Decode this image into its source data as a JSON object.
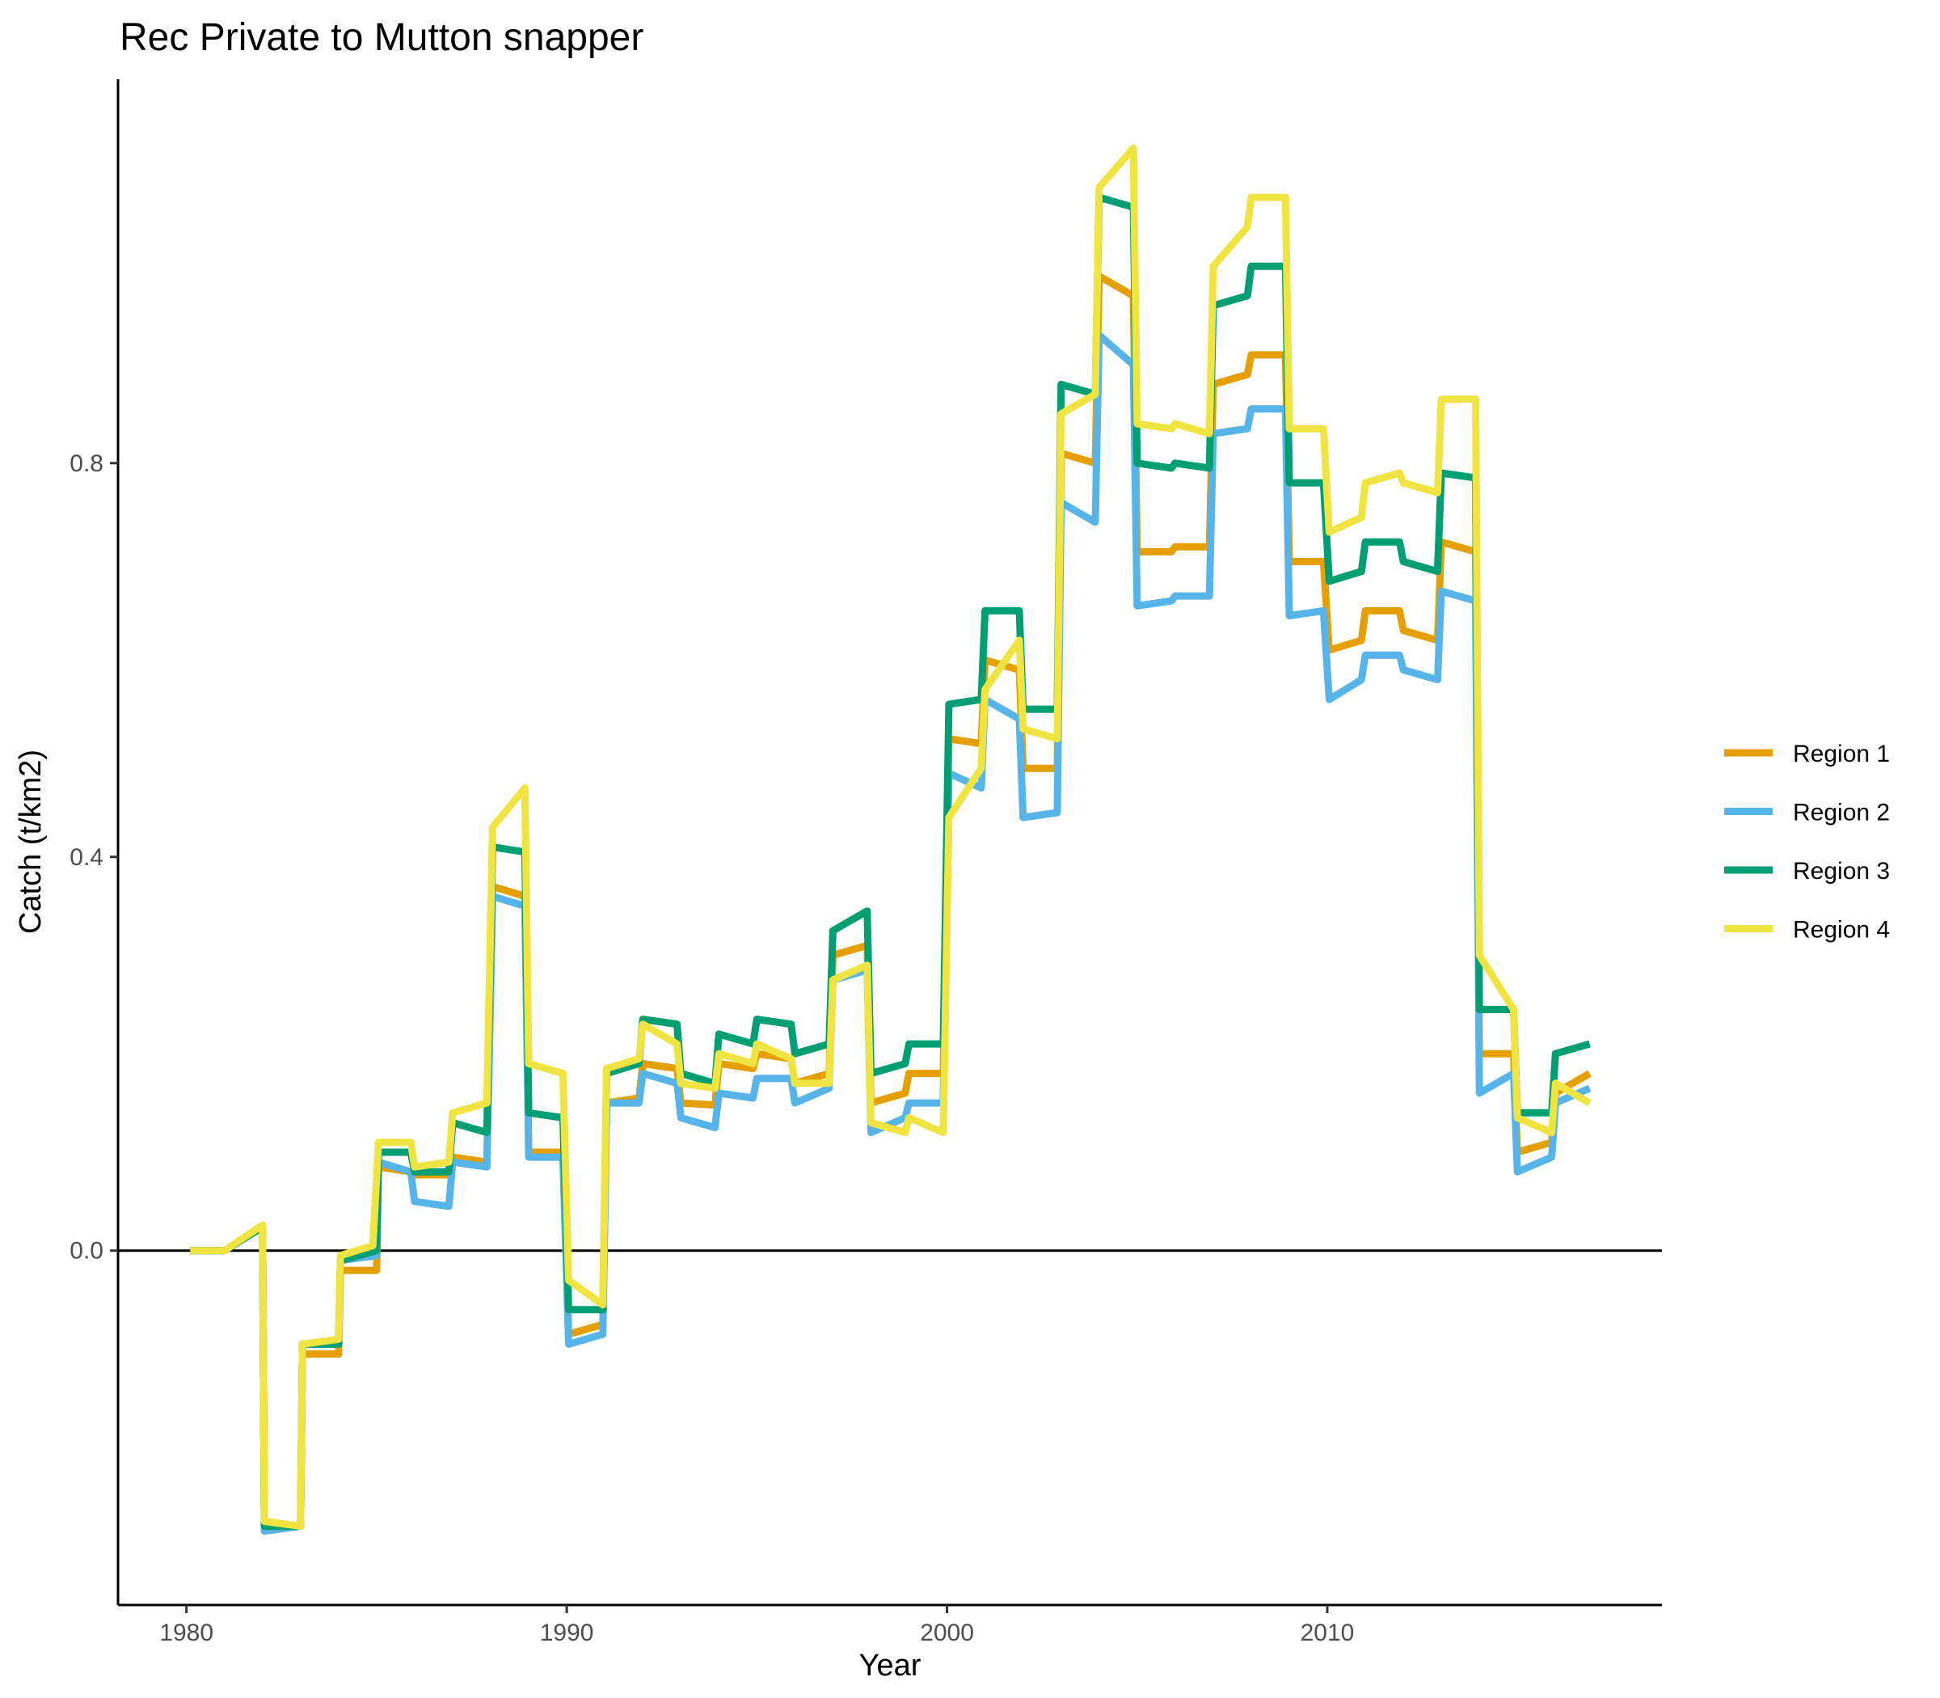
{
  "chart_data": {
    "type": "line",
    "title": "Rec Private to Mutton snapper",
    "xlabel": "Year",
    "ylabel": "Catch (t/km2)",
    "xlim": [
      1978.2,
      2018.8
    ],
    "ylim": [
      -0.36,
      1.19
    ],
    "x_ticks": [
      1980,
      1990,
      2000,
      2010
    ],
    "x_tick_labels": [
      "1980",
      "1990",
      "2000",
      "2010"
    ],
    "y_ticks": [
      0.0,
      0.4,
      0.8
    ],
    "y_tick_labels": [
      "0.0",
      "0.4",
      "0.8"
    ],
    "zero_line": true,
    "grid": false,
    "legend_position": "right",
    "series": [
      {
        "name": "Region 1",
        "color": "#E69F00",
        "points": [
          [
            1980.1,
            0.0
          ],
          [
            1981.0,
            0.0
          ],
          [
            1982.0,
            0.024
          ],
          [
            1982.05,
            -0.28
          ],
          [
            1983.0,
            -0.28
          ],
          [
            1983.05,
            -0.105
          ],
          [
            1984.0,
            -0.105
          ],
          [
            1984.05,
            -0.02
          ],
          [
            1985.0,
            -0.02
          ],
          [
            1985.05,
            0.085
          ],
          [
            1985.9,
            0.08
          ],
          [
            1986.0,
            0.077
          ],
          [
            1986.9,
            0.077
          ],
          [
            1987.0,
            0.095
          ],
          [
            1987.9,
            0.09
          ],
          [
            1988.05,
            0.37
          ],
          [
            1988.9,
            0.36
          ],
          [
            1989.0,
            0.1
          ],
          [
            1989.9,
            0.1
          ],
          [
            1990.05,
            -0.085
          ],
          [
            1990.95,
            -0.075
          ],
          [
            1991.05,
            0.15
          ],
          [
            1991.9,
            0.155
          ],
          [
            1992.0,
            0.19
          ],
          [
            1992.9,
            0.185
          ],
          [
            1993.0,
            0.15
          ],
          [
            1993.9,
            0.148
          ],
          [
            1994.0,
            0.19
          ],
          [
            1994.9,
            0.185
          ],
          [
            1995.0,
            0.2
          ],
          [
            1995.9,
            0.195
          ],
          [
            1996.0,
            0.17
          ],
          [
            1996.9,
            0.18
          ],
          [
            1997.0,
            0.3
          ],
          [
            1997.9,
            0.31
          ],
          [
            1998.0,
            0.15
          ],
          [
            1998.9,
            0.16
          ],
          [
            1999.0,
            0.18
          ],
          [
            1999.9,
            0.18
          ],
          [
            2000.05,
            0.52
          ],
          [
            2000.9,
            0.515
          ],
          [
            2001.0,
            0.6
          ],
          [
            2001.9,
            0.59
          ],
          [
            2002.0,
            0.49
          ],
          [
            2002.9,
            0.49
          ],
          [
            2003.0,
            0.81
          ],
          [
            2003.9,
            0.8
          ],
          [
            2004.0,
            0.99
          ],
          [
            2004.9,
            0.97
          ],
          [
            2005.0,
            0.71
          ],
          [
            2005.9,
            0.71
          ],
          [
            2006.0,
            0.715
          ],
          [
            2006.9,
            0.715
          ],
          [
            2007.0,
            0.88
          ],
          [
            2007.9,
            0.89
          ],
          [
            2008.0,
            0.91
          ],
          [
            2008.9,
            0.91
          ],
          [
            2009.0,
            0.7
          ],
          [
            2009.9,
            0.7
          ],
          [
            2010.05,
            0.61
          ],
          [
            2010.9,
            0.62
          ],
          [
            2011.0,
            0.65
          ],
          [
            2011.9,
            0.65
          ],
          [
            2012.0,
            0.63
          ],
          [
            2012.9,
            0.62
          ],
          [
            2013.0,
            0.72
          ],
          [
            2013.9,
            0.71
          ],
          [
            2014.0,
            0.2
          ],
          [
            2014.9,
            0.2
          ],
          [
            2015.0,
            0.1
          ],
          [
            2015.9,
            0.11
          ],
          [
            2016.0,
            0.16
          ],
          [
            2016.9,
            0.18
          ]
        ]
      },
      {
        "name": "Region 2",
        "color": "#56B4E9",
        "points": [
          [
            1980.1,
            0.0
          ],
          [
            1981.0,
            0.0
          ],
          [
            1982.0,
            0.024
          ],
          [
            1982.05,
            -0.285
          ],
          [
            1983.0,
            -0.28
          ],
          [
            1983.05,
            -0.095
          ],
          [
            1984.0,
            -0.095
          ],
          [
            1984.05,
            -0.01
          ],
          [
            1985.0,
            -0.005
          ],
          [
            1985.05,
            0.09
          ],
          [
            1985.9,
            0.08
          ],
          [
            1986.0,
            0.05
          ],
          [
            1986.9,
            0.045
          ],
          [
            1987.0,
            0.09
          ],
          [
            1987.9,
            0.085
          ],
          [
            1988.05,
            0.36
          ],
          [
            1988.9,
            0.35
          ],
          [
            1989.0,
            0.095
          ],
          [
            1989.9,
            0.095
          ],
          [
            1990.05,
            -0.095
          ],
          [
            1990.95,
            -0.085
          ],
          [
            1991.05,
            0.15
          ],
          [
            1991.9,
            0.15
          ],
          [
            1992.0,
            0.18
          ],
          [
            1992.9,
            0.17
          ],
          [
            1993.0,
            0.135
          ],
          [
            1993.9,
            0.125
          ],
          [
            1994.0,
            0.16
          ],
          [
            1994.9,
            0.155
          ],
          [
            1995.0,
            0.175
          ],
          [
            1995.9,
            0.175
          ],
          [
            1996.0,
            0.15
          ],
          [
            1996.9,
            0.165
          ],
          [
            1997.0,
            0.275
          ],
          [
            1997.9,
            0.285
          ],
          [
            1998.0,
            0.12
          ],
          [
            1998.9,
            0.135
          ],
          [
            1999.0,
            0.15
          ],
          [
            1999.9,
            0.15
          ],
          [
            2000.05,
            0.485
          ],
          [
            2000.9,
            0.47
          ],
          [
            2001.0,
            0.56
          ],
          [
            2001.9,
            0.54
          ],
          [
            2002.0,
            0.44
          ],
          [
            2002.9,
            0.445
          ],
          [
            2003.0,
            0.76
          ],
          [
            2003.9,
            0.74
          ],
          [
            2004.0,
            0.93
          ],
          [
            2004.9,
            0.9
          ],
          [
            2005.0,
            0.655
          ],
          [
            2005.9,
            0.66
          ],
          [
            2006.0,
            0.665
          ],
          [
            2006.9,
            0.665
          ],
          [
            2007.0,
            0.83
          ],
          [
            2007.9,
            0.835
          ],
          [
            2008.0,
            0.855
          ],
          [
            2008.9,
            0.855
          ],
          [
            2009.0,
            0.645
          ],
          [
            2009.9,
            0.65
          ],
          [
            2010.05,
            0.56
          ],
          [
            2010.9,
            0.58
          ],
          [
            2011.0,
            0.605
          ],
          [
            2011.9,
            0.605
          ],
          [
            2012.0,
            0.59
          ],
          [
            2012.9,
            0.58
          ],
          [
            2013.0,
            0.67
          ],
          [
            2013.9,
            0.66
          ],
          [
            2014.0,
            0.16
          ],
          [
            2014.9,
            0.18
          ],
          [
            2015.0,
            0.08
          ],
          [
            2015.9,
            0.095
          ],
          [
            2016.0,
            0.15
          ],
          [
            2016.9,
            0.165
          ]
        ]
      },
      {
        "name": "Region 3",
        "color": "#009E73",
        "points": [
          [
            1980.1,
            0.0
          ],
          [
            1981.0,
            0.0
          ],
          [
            1982.0,
            0.024
          ],
          [
            1982.05,
            -0.28
          ],
          [
            1983.0,
            -0.28
          ],
          [
            1983.05,
            -0.095
          ],
          [
            1984.0,
            -0.095
          ],
          [
            1984.05,
            -0.01
          ],
          [
            1985.0,
            0.0
          ],
          [
            1985.05,
            0.1
          ],
          [
            1985.9,
            0.1
          ],
          [
            1986.0,
            0.08
          ],
          [
            1986.9,
            0.08
          ],
          [
            1987.0,
            0.13
          ],
          [
            1987.9,
            0.12
          ],
          [
            1988.05,
            0.41
          ],
          [
            1988.9,
            0.405
          ],
          [
            1989.0,
            0.14
          ],
          [
            1989.9,
            0.135
          ],
          [
            1990.05,
            -0.06
          ],
          [
            1990.95,
            -0.06
          ],
          [
            1991.05,
            0.18
          ],
          [
            1991.9,
            0.19
          ],
          [
            1992.0,
            0.235
          ],
          [
            1992.9,
            0.23
          ],
          [
            1993.0,
            0.18
          ],
          [
            1993.9,
            0.17
          ],
          [
            1994.0,
            0.22
          ],
          [
            1994.9,
            0.21
          ],
          [
            1995.0,
            0.235
          ],
          [
            1995.9,
            0.23
          ],
          [
            1996.0,
            0.2
          ],
          [
            1996.9,
            0.21
          ],
          [
            1997.0,
            0.325
          ],
          [
            1997.9,
            0.345
          ],
          [
            1998.0,
            0.18
          ],
          [
            1998.9,
            0.19
          ],
          [
            1999.0,
            0.21
          ],
          [
            1999.9,
            0.21
          ],
          [
            2000.05,
            0.555
          ],
          [
            2000.9,
            0.56
          ],
          [
            2001.0,
            0.65
          ],
          [
            2001.9,
            0.65
          ],
          [
            2002.0,
            0.55
          ],
          [
            2002.9,
            0.55
          ],
          [
            2003.0,
            0.88
          ],
          [
            2003.9,
            0.87
          ],
          [
            2004.0,
            1.07
          ],
          [
            2004.9,
            1.06
          ],
          [
            2005.0,
            0.8
          ],
          [
            2005.9,
            0.795
          ],
          [
            2006.0,
            0.8
          ],
          [
            2006.9,
            0.795
          ],
          [
            2007.0,
            0.96
          ],
          [
            2007.9,
            0.97
          ],
          [
            2008.0,
            1.0
          ],
          [
            2008.9,
            1.0
          ],
          [
            2009.0,
            0.78
          ],
          [
            2009.9,
            0.78
          ],
          [
            2010.05,
            0.68
          ],
          [
            2010.9,
            0.69
          ],
          [
            2011.0,
            0.72
          ],
          [
            2011.9,
            0.72
          ],
          [
            2012.0,
            0.7
          ],
          [
            2012.9,
            0.69
          ],
          [
            2013.0,
            0.79
          ],
          [
            2013.9,
            0.785
          ],
          [
            2014.0,
            0.245
          ],
          [
            2014.9,
            0.245
          ],
          [
            2015.0,
            0.14
          ],
          [
            2015.9,
            0.14
          ],
          [
            2016.0,
            0.2
          ],
          [
            2016.9,
            0.21
          ]
        ]
      },
      {
        "name": "Region 4",
        "color": "#F0E442",
        "points": [
          [
            1980.1,
            0.0
          ],
          [
            1981.0,
            0.0
          ],
          [
            1982.0,
            0.026
          ],
          [
            1982.05,
            -0.275
          ],
          [
            1983.0,
            -0.28
          ],
          [
            1983.05,
            -0.095
          ],
          [
            1984.0,
            -0.09
          ],
          [
            1984.05,
            -0.005
          ],
          [
            1984.9,
            0.005
          ],
          [
            1985.05,
            0.11
          ],
          [
            1985.9,
            0.11
          ],
          [
            1986.0,
            0.085
          ],
          [
            1986.9,
            0.09
          ],
          [
            1987.0,
            0.14
          ],
          [
            1987.9,
            0.15
          ],
          [
            1988.05,
            0.43
          ],
          [
            1988.9,
            0.47
          ],
          [
            1989.0,
            0.19
          ],
          [
            1989.9,
            0.18
          ],
          [
            1990.05,
            -0.03
          ],
          [
            1990.95,
            -0.055
          ],
          [
            1991.05,
            0.185
          ],
          [
            1991.9,
            0.195
          ],
          [
            1992.0,
            0.23
          ],
          [
            1992.9,
            0.21
          ],
          [
            1993.0,
            0.17
          ],
          [
            1993.9,
            0.165
          ],
          [
            1994.0,
            0.2
          ],
          [
            1994.9,
            0.19
          ],
          [
            1995.0,
            0.21
          ],
          [
            1995.9,
            0.195
          ],
          [
            1996.0,
            0.17
          ],
          [
            1996.9,
            0.17
          ],
          [
            1997.0,
            0.275
          ],
          [
            1997.9,
            0.29
          ],
          [
            1998.0,
            0.13
          ],
          [
            1998.9,
            0.12
          ],
          [
            1999.0,
            0.135
          ],
          [
            1999.9,
            0.12
          ],
          [
            2000.05,
            0.44
          ],
          [
            2000.9,
            0.49
          ],
          [
            2001.0,
            0.57
          ],
          [
            2001.9,
            0.62
          ],
          [
            2002.0,
            0.53
          ],
          [
            2002.9,
            0.52
          ],
          [
            2003.0,
            0.85
          ],
          [
            2003.9,
            0.87
          ],
          [
            2004.0,
            1.08
          ],
          [
            2004.9,
            1.12
          ],
          [
            2005.0,
            0.84
          ],
          [
            2005.9,
            0.835
          ],
          [
            2006.0,
            0.84
          ],
          [
            2006.9,
            0.83
          ],
          [
            2007.0,
            1.0
          ],
          [
            2007.9,
            1.04
          ],
          [
            2008.0,
            1.07
          ],
          [
            2008.9,
            1.07
          ],
          [
            2009.0,
            0.835
          ],
          [
            2009.9,
            0.835
          ],
          [
            2010.05,
            0.73
          ],
          [
            2010.9,
            0.745
          ],
          [
            2011.0,
            0.78
          ],
          [
            2011.9,
            0.79
          ],
          [
            2012.0,
            0.78
          ],
          [
            2012.9,
            0.77
          ],
          [
            2013.0,
            0.865
          ],
          [
            2013.9,
            0.865
          ],
          [
            2014.0,
            0.3
          ],
          [
            2014.9,
            0.245
          ],
          [
            2015.0,
            0.135
          ],
          [
            2015.9,
            0.12
          ],
          [
            2016.0,
            0.17
          ],
          [
            2016.9,
            0.15
          ]
        ]
      }
    ]
  }
}
